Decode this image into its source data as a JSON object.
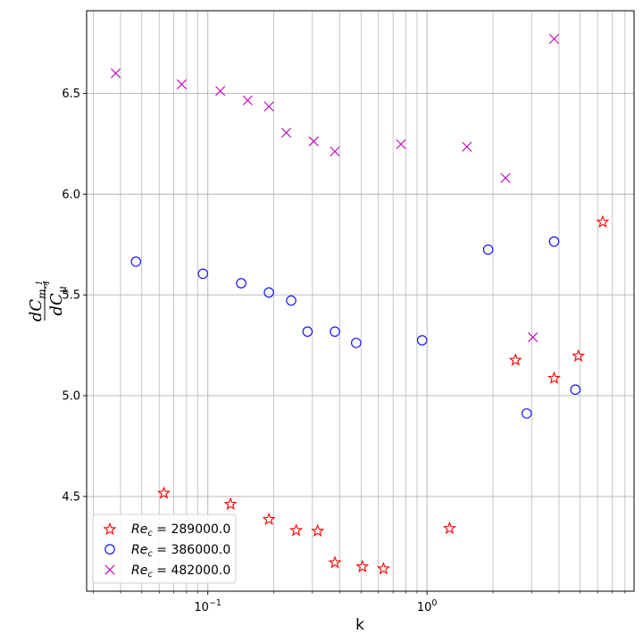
{
  "chart_data": {
    "type": "scatter",
    "xscale": "log",
    "xlim": [
      0.028,
      8.8
    ],
    "ylim": [
      4.03,
      6.91
    ],
    "grid": true,
    "xlabel": "k",
    "ylabel": "dC_{m,1/4} / dC_mu",
    "x_tick_labels": [
      {
        "value": 0.1,
        "base": "10",
        "exp": "−1"
      },
      {
        "value": 1,
        "base": "10",
        "exp": "0"
      }
    ],
    "y_ticks": [
      4.5,
      5.0,
      5.5,
      6.0,
      6.5
    ],
    "y_tick_labels": [
      "4.5",
      "5.0",
      "5.5",
      "6.0",
      "6.5"
    ],
    "legend_position": "lower-left",
    "series": [
      {
        "name": "Re_c = 289000.0",
        "name_parts": {
          "sym": "Re",
          "sub": "c",
          "rest": " = 289000.0"
        },
        "marker": "star",
        "color": "#ff0000",
        "points": [
          [
            0.063,
            4.52
          ],
          [
            0.127,
            4.465
          ],
          [
            0.19,
            4.39
          ],
          [
            0.253,
            4.335
          ],
          [
            0.317,
            4.332
          ],
          [
            0.38,
            4.175
          ],
          [
            0.507,
            4.155
          ],
          [
            0.633,
            4.145
          ],
          [
            1.267,
            4.345
          ],
          [
            2.533,
            5.18
          ],
          [
            3.8,
            5.09
          ],
          [
            4.9,
            5.2
          ],
          [
            6.33,
            5.865
          ]
        ]
      },
      {
        "name": "Re_c = 386000.0",
        "name_parts": {
          "sym": "Re",
          "sub": "c",
          "rest": " = 386000.0"
        },
        "marker": "circle",
        "color": "#0000ff",
        "points": [
          [
            0.047,
            5.665
          ],
          [
            0.095,
            5.605
          ],
          [
            0.142,
            5.558
          ],
          [
            0.19,
            5.512
          ],
          [
            0.24,
            5.472
          ],
          [
            0.285,
            5.318
          ],
          [
            0.38,
            5.318
          ],
          [
            0.475,
            5.262
          ],
          [
            0.95,
            5.275
          ],
          [
            1.9,
            5.725
          ],
          [
            2.85,
            4.912
          ],
          [
            3.8,
            5.765
          ],
          [
            4.75,
            5.03
          ]
        ]
      },
      {
        "name": "Re_c = 482000.0",
        "name_parts": {
          "sym": "Re",
          "sub": "c",
          "rest": " = 482000.0"
        },
        "marker": "x",
        "color": "#bf00bf",
        "points": [
          [
            0.038,
            6.6
          ],
          [
            0.076,
            6.545
          ],
          [
            0.114,
            6.512
          ],
          [
            0.152,
            6.465
          ],
          [
            0.19,
            6.435
          ],
          [
            0.228,
            6.305
          ],
          [
            0.304,
            6.262
          ],
          [
            0.38,
            6.212
          ],
          [
            0.76,
            6.248
          ],
          [
            1.52,
            6.235
          ],
          [
            2.28,
            6.08
          ],
          [
            3.04,
            5.29
          ],
          [
            3.8,
            6.77
          ]
        ]
      }
    ]
  }
}
